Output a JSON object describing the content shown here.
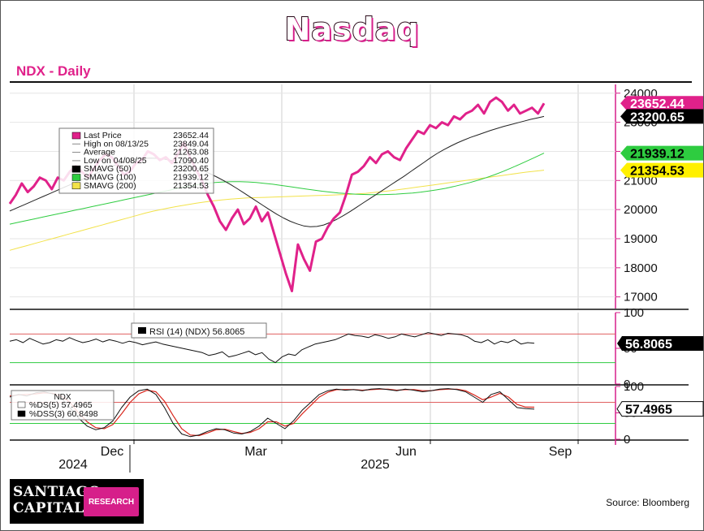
{
  "header": {
    "title": "Nasdaq",
    "subtitle": "NDX - Daily"
  },
  "footer": {
    "logo_line1": "SANTIAGO",
    "logo_line2": "CAPITAL",
    "logo_badge": "RESEARCH",
    "source": "Source: Bloomberg"
  },
  "colors": {
    "price": "#e0218a",
    "sma50": "#222222",
    "sma100": "#2ecc40",
    "sma200": "#f2e24a",
    "rsi": "#111111",
    "upper_band": "#e06060",
    "lower_band": "#2ecc40"
  },
  "chart_data": [
    {
      "type": "line",
      "panel": "price",
      "x_ticks": [
        "Dec",
        "Mar",
        "Jun",
        "Sep"
      ],
      "year_labels": [
        "2024",
        "2025"
      ],
      "ylim": [
        16600,
        24300
      ],
      "y_ticks": [
        17000,
        18000,
        19000,
        20000,
        21000,
        22000,
        23000,
        24000
      ],
      "grid": true,
      "legend": [
        {
          "label": "Last Price",
          "value": "23652.44",
          "color": "#e0218a"
        },
        {
          "label": "High on 08/13/25",
          "value": "23849.04",
          "color": "#888888"
        },
        {
          "label": "Average",
          "value": "21263.08",
          "color": "#888888"
        },
        {
          "label": "Low on 04/08/25",
          "value": "17090.40",
          "color": "#888888"
        },
        {
          "label": "SMAVG (50)",
          "value": "23200.65",
          "color": "#000000"
        },
        {
          "label": "SMAVG (100)",
          "value": "21939.12",
          "color": "#2ecc40"
        },
        {
          "label": "SMAVG (200)",
          "value": "21354.53",
          "color": "#f2e24a"
        }
      ],
      "value_tags": [
        {
          "text": "23652.44",
          "value": 23652.44,
          "bg": "#e0218a",
          "fg": "#ffffff"
        },
        {
          "text": "23200.65",
          "value": 23200.65,
          "bg": "#000000",
          "fg": "#ffffff"
        },
        {
          "text": "21939.12",
          "value": 21939.12,
          "bg": "#2ecc40",
          "fg": "#000000"
        },
        {
          "text": "21354.53",
          "value": 21354.53,
          "bg": "#fff000",
          "fg": "#000000"
        }
      ],
      "series": [
        {
          "name": "Last Price",
          "color": "#e0218a",
          "values": [
            20200,
            20500,
            20900,
            20600,
            20800,
            21100,
            21000,
            20700,
            21100,
            21000,
            21300,
            21500,
            21300,
            21100,
            21400,
            21700,
            21900,
            21800,
            21500,
            21200,
            21300,
            21600,
            21700,
            22000,
            21900,
            21700,
            21800,
            21600,
            21900,
            22300,
            21800,
            21400,
            21000,
            20500,
            20100,
            19600,
            19300,
            19700,
            20000,
            19500,
            19700,
            20100,
            19600,
            19900,
            19200,
            18500,
            17800,
            17200,
            18800,
            18300,
            17900,
            18900,
            19000,
            19400,
            19700,
            19900,
            20500,
            21200,
            21300,
            21500,
            21800,
            21600,
            21900,
            22000,
            21800,
            21700,
            22100,
            22400,
            22700,
            22600,
            22900,
            22800,
            23000,
            22900,
            23200,
            23100,
            23300,
            23400,
            23600,
            23300,
            23700,
            23849,
            23700,
            23400,
            23600,
            23300,
            23400,
            23500,
            23300,
            23652
          ]
        },
        {
          "name": "SMAVG (50)",
          "color": "#222222",
          "values": [
            19950,
            20050,
            20150,
            20250,
            20350,
            20450,
            20550,
            20650,
            20750,
            20850,
            20950,
            21050,
            21150,
            21250,
            21350,
            21450,
            21550,
            21620,
            21680,
            21730,
            21760,
            21770,
            21760,
            21740,
            21700,
            21640,
            21580,
            21500,
            21420,
            21330,
            21230,
            21120,
            21000,
            20870,
            20730,
            20580,
            20430,
            20280,
            20130,
            19980,
            19840,
            19710,
            19600,
            19510,
            19440,
            19410,
            19420,
            19470,
            19560,
            19670,
            19800,
            19940,
            20090,
            20240,
            20390,
            20540,
            20690,
            20840,
            20990,
            21140,
            21300,
            21460,
            21620,
            21780,
            21930,
            22060,
            22180,
            22290,
            22390,
            22480,
            22560,
            22640,
            22720,
            22790,
            22860,
            22920,
            22980,
            23040,
            23100,
            23150,
            23200
          ]
        },
        {
          "name": "SMAVG (100)",
          "color": "#2ecc40",
          "values": [
            19500,
            19560,
            19620,
            19680,
            19740,
            19800,
            19860,
            19920,
            19980,
            20040,
            20100,
            20160,
            20220,
            20280,
            20340,
            20400,
            20460,
            20520,
            20580,
            20640,
            20700,
            20760,
            20810,
            20860,
            20900,
            20930,
            20950,
            20960,
            20960,
            20950,
            20930,
            20900,
            20870,
            20830,
            20790,
            20750,
            20710,
            20670,
            20630,
            20600,
            20570,
            20550,
            20530,
            20520,
            20510,
            20510,
            20520,
            20530,
            20550,
            20570,
            20600,
            20640,
            20680,
            20730,
            20790,
            20860,
            20930,
            21010,
            21100,
            21200,
            21310,
            21430,
            21550,
            21680,
            21810,
            21939
          ]
        },
        {
          "name": "SMAVG (200)",
          "color": "#f2e24a",
          "values": [
            18600,
            18680,
            18760,
            18840,
            18920,
            19000,
            19080,
            19160,
            19240,
            19320,
            19400,
            19480,
            19560,
            19640,
            19720,
            19800,
            19880,
            19950,
            20010,
            20070,
            20120,
            20170,
            20220,
            20260,
            20300,
            20330,
            20360,
            20380,
            20400,
            20410,
            20420,
            20430,
            20440,
            20450,
            20460,
            20470,
            20480,
            20490,
            20500,
            20510,
            20520,
            20540,
            20560,
            20590,
            20620,
            20650,
            20690,
            20730,
            20770,
            20810,
            20850,
            20890,
            20930,
            20970,
            21010,
            21050,
            21090,
            21130,
            21170,
            21210,
            21250,
            21290,
            21320,
            21354
          ]
        }
      ]
    },
    {
      "type": "line",
      "panel": "rsi",
      "legend_label": "RSI (14) (NDX) 56.8065",
      "tag": "56.8065",
      "ylim": [
        0,
        100
      ],
      "y_ticks": [
        0,
        50,
        100
      ],
      "levels": [
        70,
        30
      ],
      "series": [
        {
          "name": "RSI (14) (NDX)",
          "color": "#111111",
          "values": [
            60,
            62,
            58,
            64,
            60,
            56,
            58,
            62,
            60,
            65,
            61,
            58,
            60,
            63,
            59,
            62,
            60,
            57,
            60,
            58,
            55,
            57,
            59,
            56,
            54,
            52,
            50,
            48,
            46,
            44,
            40,
            42,
            45,
            38,
            40,
            43,
            46,
            41,
            44,
            35,
            30,
            38,
            42,
            40,
            48,
            52,
            56,
            58,
            60,
            62,
            66,
            70,
            68,
            67,
            65,
            69,
            67,
            64,
            66,
            70,
            68,
            66,
            69,
            72,
            70,
            68,
            71,
            70,
            69,
            66,
            60,
            58,
            62,
            56,
            60,
            58,
            62,
            56,
            58,
            57
          ]
        }
      ]
    },
    {
      "type": "line",
      "panel": "stochastic",
      "legend_title": "NDX",
      "legend": [
        {
          "label": "%DS(5) 57.4965",
          "color": "#111111"
        },
        {
          "label": "%DSS(3) 60.8498",
          "color": "#d9261c"
        }
      ],
      "tag": "57.4965",
      "ylim": [
        0,
        100
      ],
      "y_ticks": [
        0,
        50,
        100
      ],
      "levels": [
        70,
        30
      ],
      "series": [
        {
          "name": "%DS(5)",
          "color": "#111111",
          "values": [
            80,
            85,
            82,
            88,
            90,
            86,
            78,
            60,
            40,
            25,
            18,
            22,
            35,
            60,
            80,
            92,
            95,
            85,
            60,
            30,
            10,
            5,
            8,
            15,
            20,
            18,
            12,
            10,
            15,
            25,
            40,
            30,
            20,
            35,
            55,
            70,
            85,
            92,
            95,
            93,
            94,
            92,
            95,
            96,
            94,
            92,
            95,
            93,
            90,
            92,
            95,
            96,
            94,
            90,
            80,
            70,
            85,
            90,
            75,
            60,
            58,
            57
          ]
        },
        {
          "name": "%DSS(3)",
          "color": "#d9261c",
          "values": [
            82,
            84,
            85,
            86,
            88,
            87,
            82,
            70,
            50,
            33,
            22,
            20,
            28,
            48,
            70,
            86,
            93,
            90,
            72,
            45,
            20,
            8,
            7,
            12,
            18,
            19,
            15,
            11,
            13,
            20,
            33,
            33,
            25,
            30,
            48,
            64,
            80,
            89,
            94,
            94,
            94,
            93,
            94,
            95,
            95,
            93,
            94,
            94,
            92,
            92,
            94,
            95,
            95,
            92,
            84,
            75,
            80,
            87,
            80,
            66,
            61,
            60.8
          ]
        }
      ]
    }
  ]
}
